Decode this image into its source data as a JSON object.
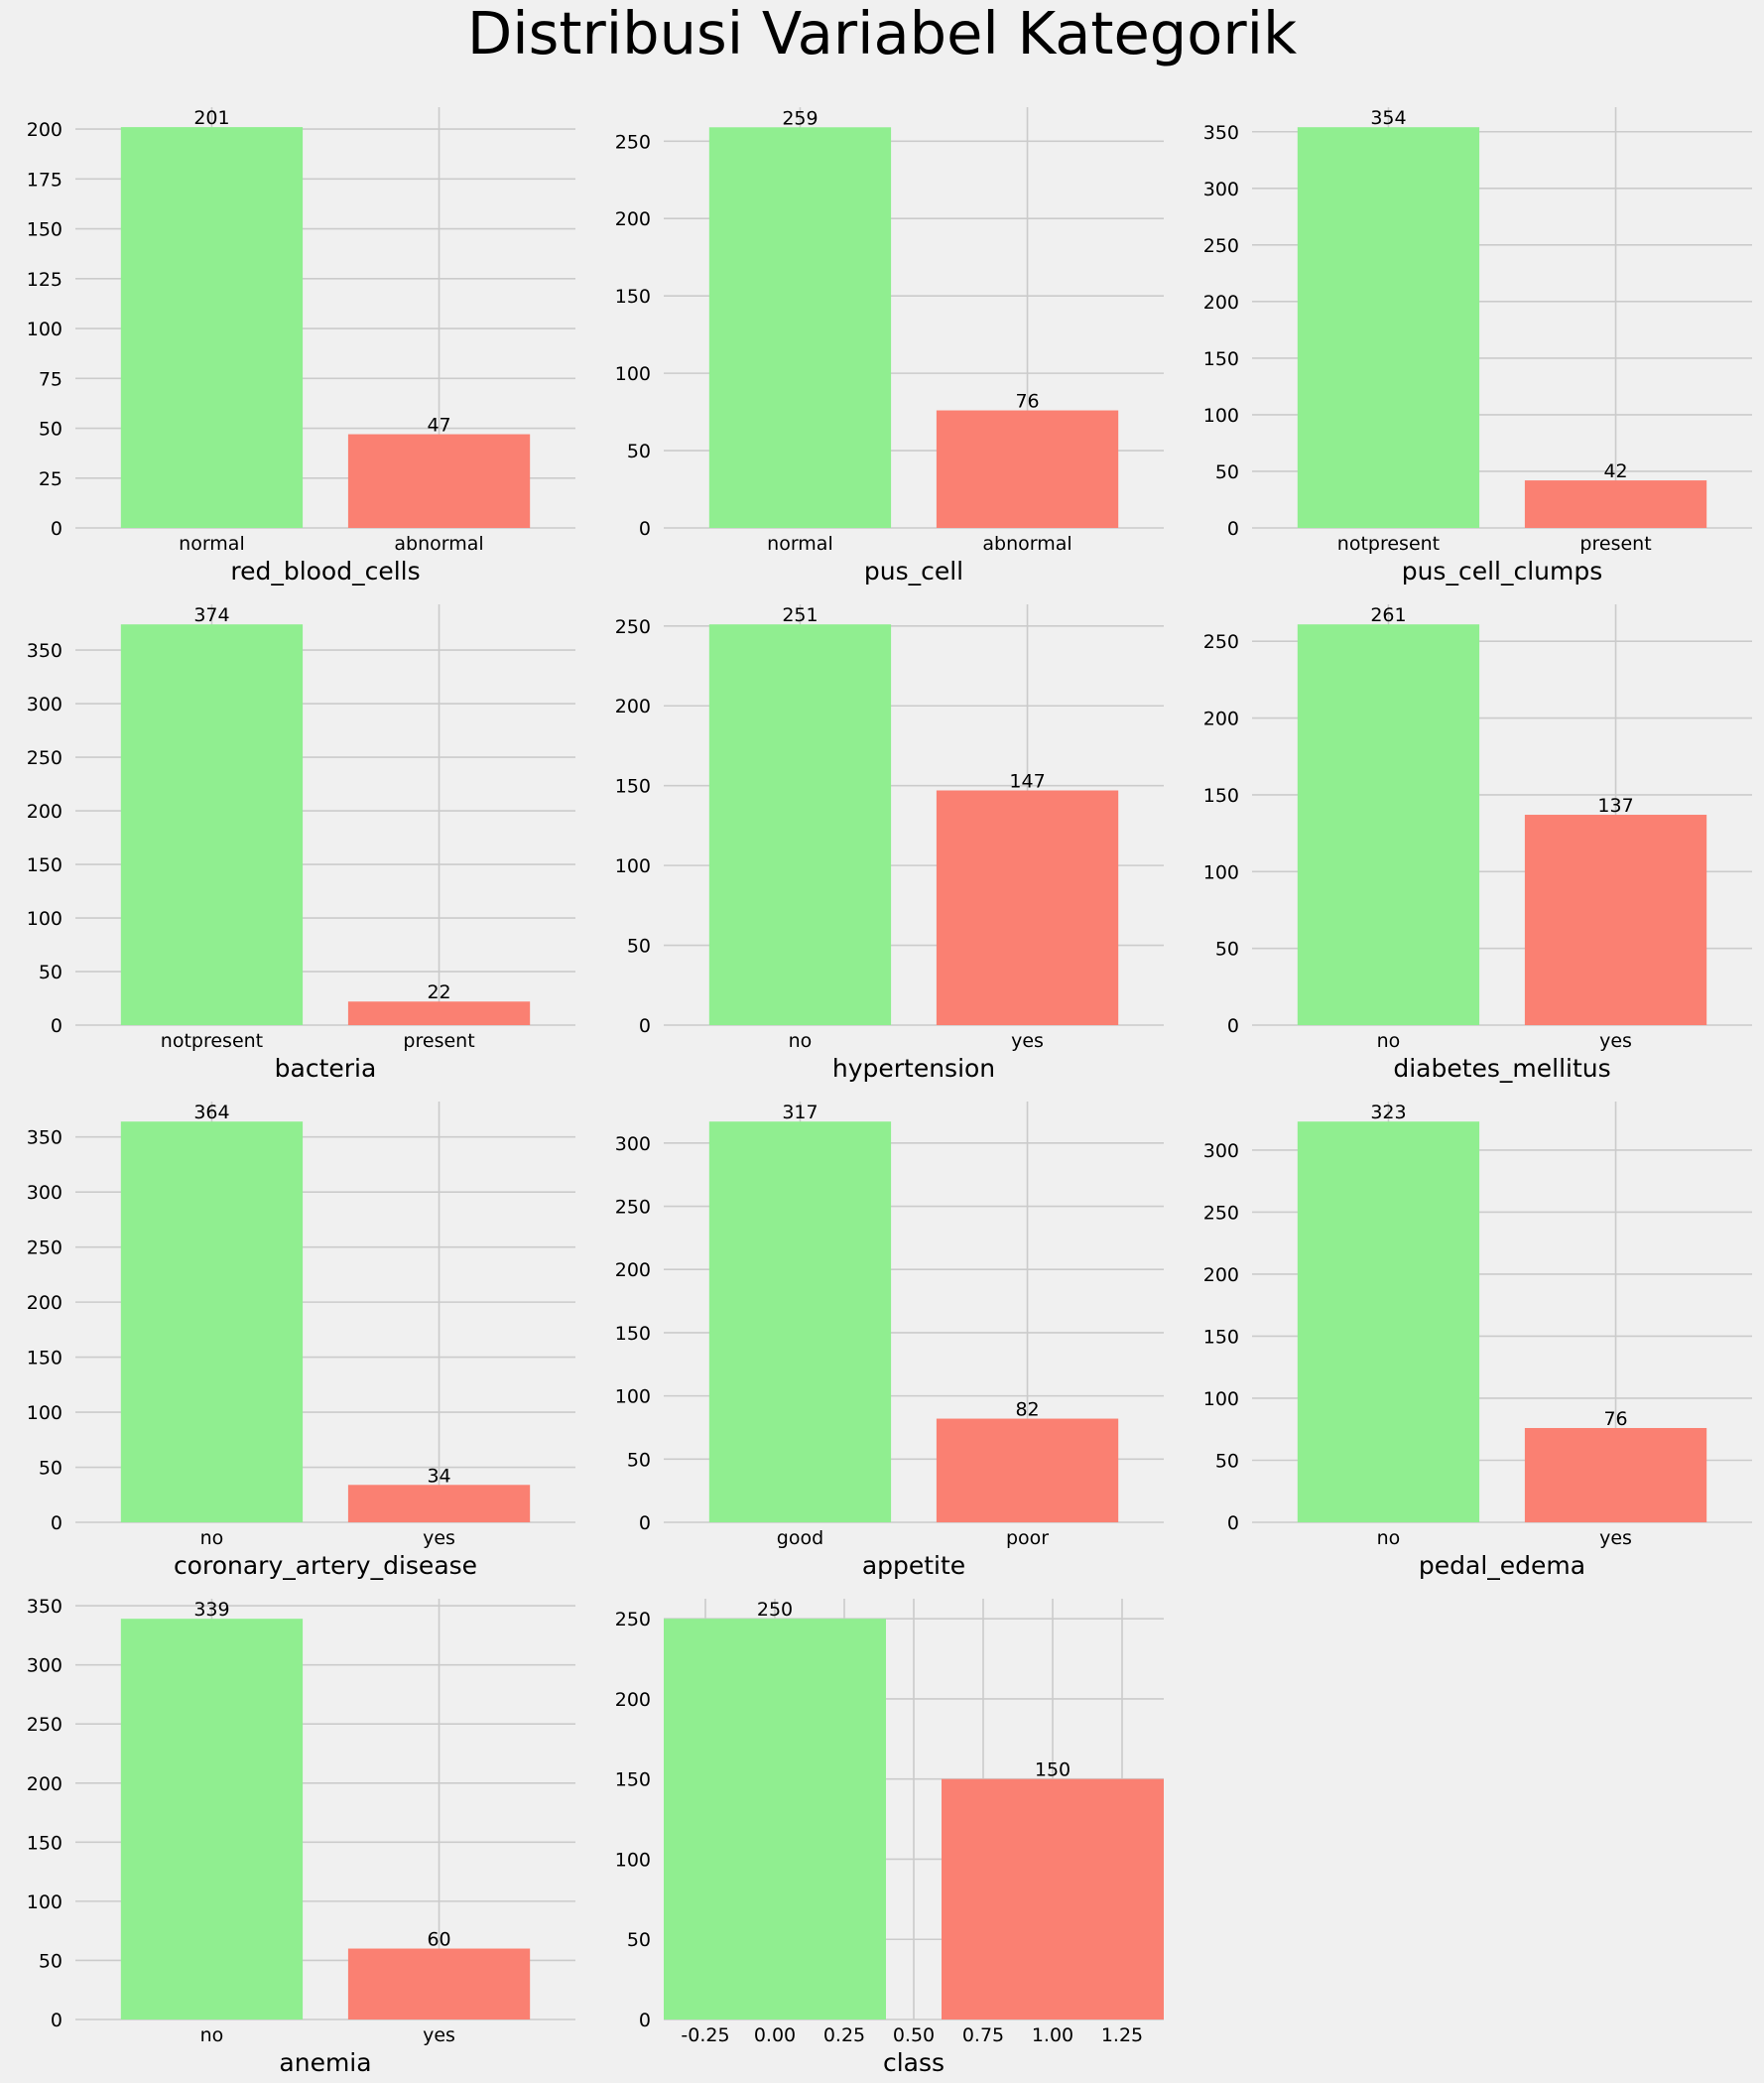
{
  "title": "Distribusi Variabel Kategorik",
  "colors": {
    "background": "#f0f0f0",
    "grid": "#cbcbcb",
    "first_bar": "#90ee90",
    "second_bar": "#fa8072"
  },
  "chart_data": [
    {
      "type": "bar",
      "xlabel": "red_blood_cells",
      "categories": [
        "normal",
        "abnormal"
      ],
      "values": [
        201,
        47
      ],
      "yticks": [
        0,
        25,
        50,
        75,
        100,
        125,
        150,
        175,
        200
      ],
      "ylim": [
        0,
        211
      ],
      "grid": true
    },
    {
      "type": "bar",
      "xlabel": "pus_cell",
      "categories": [
        "normal",
        "abnormal"
      ],
      "values": [
        259,
        76
      ],
      "yticks": [
        0,
        50,
        100,
        150,
        200,
        250
      ],
      "ylim": [
        0,
        272
      ],
      "grid": true
    },
    {
      "type": "bar",
      "xlabel": "pus_cell_clumps",
      "categories": [
        "notpresent",
        "present"
      ],
      "values": [
        354,
        42
      ],
      "yticks": [
        0,
        50,
        100,
        150,
        200,
        250,
        300,
        350
      ],
      "ylim": [
        0,
        371.7
      ],
      "grid": true
    },
    {
      "type": "bar",
      "xlabel": "bacteria",
      "categories": [
        "notpresent",
        "present"
      ],
      "values": [
        374,
        22
      ],
      "yticks": [
        0,
        50,
        100,
        150,
        200,
        250,
        300,
        350
      ],
      "ylim": [
        0,
        392.7
      ],
      "grid": true
    },
    {
      "type": "bar",
      "xlabel": "hypertension",
      "categories": [
        "no",
        "yes"
      ],
      "values": [
        251,
        147
      ],
      "yticks": [
        0,
        50,
        100,
        150,
        200,
        250
      ],
      "ylim": [
        0,
        263.55
      ],
      "grid": true
    },
    {
      "type": "bar",
      "xlabel": "diabetes_mellitus",
      "categories": [
        "no",
        "yes"
      ],
      "values": [
        261,
        137
      ],
      "yticks": [
        0,
        50,
        100,
        150,
        200,
        250
      ],
      "ylim": [
        0,
        274.05
      ],
      "grid": true
    },
    {
      "type": "bar",
      "xlabel": "coronary_artery_disease",
      "categories": [
        "no",
        "yes"
      ],
      "values": [
        364,
        34
      ],
      "yticks": [
        0,
        50,
        100,
        150,
        200,
        250,
        300,
        350
      ],
      "ylim": [
        0,
        382.2
      ],
      "grid": true
    },
    {
      "type": "bar",
      "xlabel": "appetite",
      "categories": [
        "good",
        "poor"
      ],
      "values": [
        317,
        82
      ],
      "yticks": [
        0,
        50,
        100,
        150,
        200,
        250,
        300
      ],
      "ylim": [
        0,
        332.85
      ],
      "grid": true
    },
    {
      "type": "bar",
      "xlabel": "pedal_edema",
      "categories": [
        "no",
        "yes"
      ],
      "values": [
        323,
        76
      ],
      "yticks": [
        0,
        50,
        100,
        150,
        200,
        250,
        300
      ],
      "ylim": [
        0,
        339.15
      ],
      "grid": true
    },
    {
      "type": "bar",
      "xlabel": "anemia",
      "categories": [
        "no",
        "yes"
      ],
      "values": [
        339,
        60
      ],
      "yticks": [
        0,
        50,
        100,
        150,
        200,
        250,
        300,
        350
      ],
      "ylim": [
        0,
        355.95
      ],
      "grid": true
    },
    {
      "type": "bar",
      "xlabel": "class",
      "numeric_x": true,
      "x": [
        0,
        1
      ],
      "values": [
        250,
        150
      ],
      "xticks": [
        "-0.25",
        "0.00",
        "0.25",
        "0.50",
        "0.75",
        "1.00",
        "1.25"
      ],
      "yticks": [
        0,
        50,
        100,
        150,
        200,
        250
      ],
      "ylim": [
        0,
        262.5
      ],
      "xlim": [
        -0.4,
        1.4
      ],
      "grid": true
    }
  ]
}
